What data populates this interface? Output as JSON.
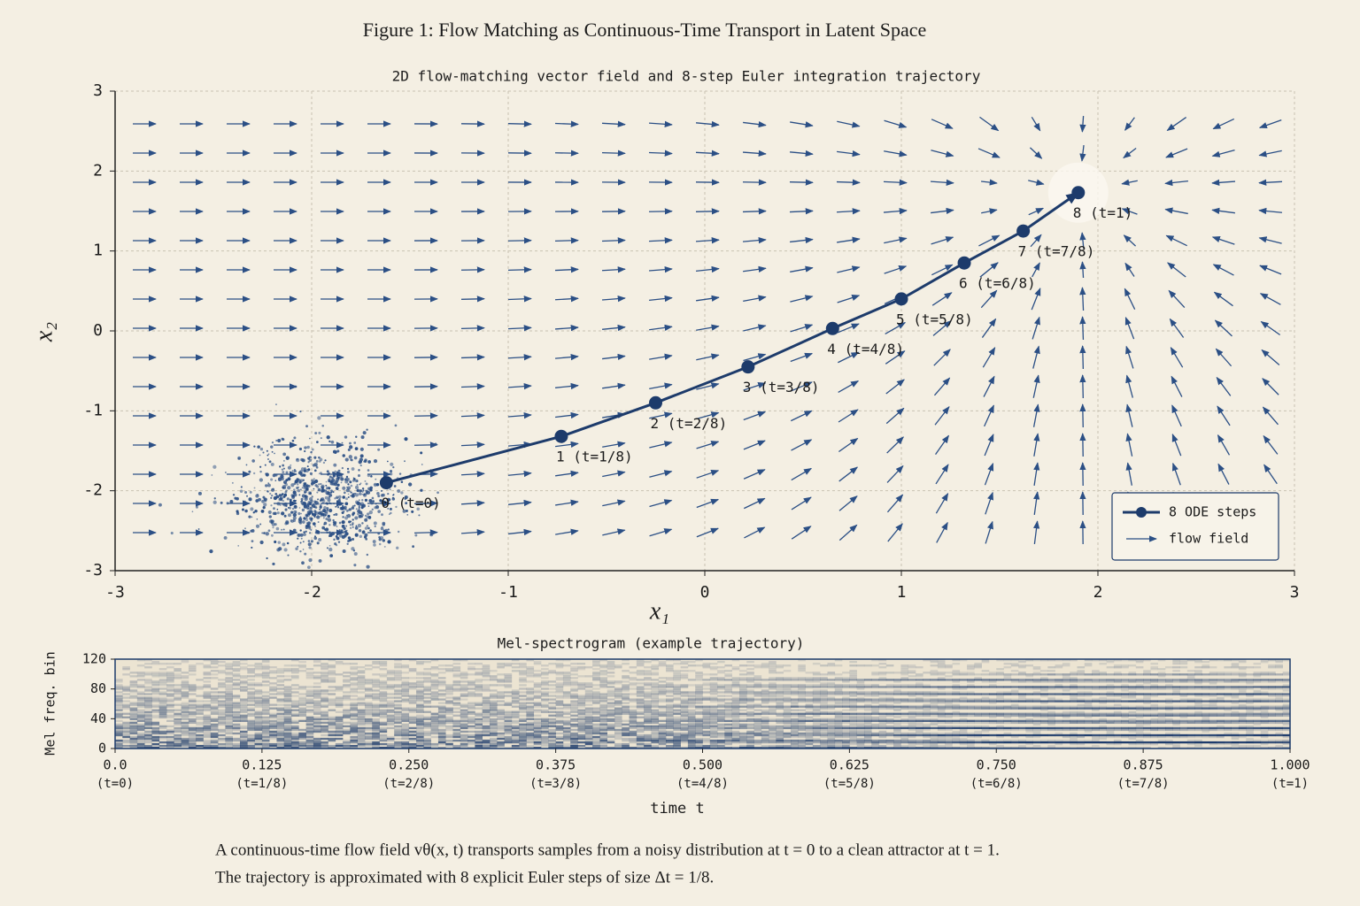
{
  "figure_title": "Figure 1:   Flow Matching as Continuous-Time Transport in Latent Space",
  "caption": [
    "A continuous-time flow field vθ(x, t) transports samples from a noisy distribution at t = 0 to a clean attractor at t = 1.",
    "The trajectory is approximated with 8 explicit Euler steps of size Δt = 1/8."
  ],
  "chart_data": [
    {
      "type": "line",
      "title": "2D flow-matching vector field and 8-step Euler integration trajectory",
      "x_label": "x₁",
      "y_label": "x₂",
      "xlim": [
        -3,
        3
      ],
      "ylim": [
        -3,
        3
      ],
      "xticks": [
        -3,
        -2,
        -1,
        0,
        1,
        2,
        3
      ],
      "yticks": [
        -3,
        -2,
        -1,
        0,
        1,
        2,
        3
      ],
      "grid": true,
      "legend": "lower right",
      "series": [
        {
          "name": "8 ODE steps",
          "color": "#1d3b6b",
          "x": [
            -1.62,
            -0.73,
            -0.25,
            0.22,
            0.65,
            1.0,
            1.32,
            1.62,
            1.9
          ],
          "values": [
            -1.9,
            -1.32,
            -0.9,
            -0.45,
            0.03,
            0.4,
            0.85,
            1.25,
            1.73
          ],
          "point_labels": [
            "0 (t=0)",
            "1 (t=1/8)",
            "2 (t=2/8)",
            "3 (t=3/8)",
            "4 (t=4/8)",
            "5 (t=5/8)",
            "6 (t=6/8)",
            "7 (t=7/8)",
            "8 (t=1)"
          ]
        }
      ],
      "field": {
        "name": "flow field",
        "color": "#2b4f85"
      }
    },
    {
      "type": "heatmap",
      "title": "Mel-spectrogram (example trajectory)",
      "x_label": "time t",
      "y_label": "Mel freq. bin",
      "xlim": [
        0,
        1
      ],
      "ylim": [
        0,
        120
      ],
      "xticks": [
        {
          "value": 0,
          "label": "0.0"
        },
        0.125,
        {
          "value": 0.25,
          "label": "0.250"
        },
        0.375,
        {
          "value": 0.5,
          "label": "0.500"
        },
        0.625,
        {
          "value": 0.75,
          "label": "0.750"
        },
        0.875,
        {
          "value": 1,
          "label": "1.000"
        }
      ],
      "xtick_sublabels": [
        "(t=0)",
        "(t=1/8)",
        "(t=2/8)",
        "(t=3/8)",
        "(t=4/8)",
        "(t=5/8)",
        "(t=6/8)",
        "(t=7/8)",
        "(t=1)"
      ],
      "yticks": [
        0,
        40,
        80,
        120
      ],
      "color": "#1d3b6b"
    }
  ]
}
